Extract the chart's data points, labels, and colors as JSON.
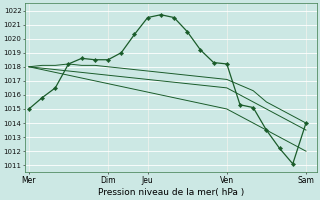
{
  "bg_color": "#cce8e4",
  "grid_color": "#ffffff",
  "line_color": "#1a5c2a",
  "xlabel": "Pression niveau de la mer( hPa )",
  "ylim": [
    1010.5,
    1022.5
  ],
  "yticks": [
    1011,
    1012,
    1013,
    1014,
    1015,
    1016,
    1017,
    1018,
    1019,
    1020,
    1021,
    1022
  ],
  "xtick_labels": [
    "Mer",
    "Dim",
    "Jeu",
    "Ven",
    "Sam"
  ],
  "xtick_positions": [
    0,
    6,
    9,
    15,
    21
  ],
  "xlim": [
    -0.3,
    21.8
  ],
  "series1_x": [
    0,
    1,
    2,
    3,
    4,
    5,
    6,
    7,
    8,
    9,
    10,
    11,
    12,
    13,
    14,
    15,
    16,
    17,
    18,
    19,
    20,
    21
  ],
  "series1_y": [
    1015.0,
    1015.8,
    1016.5,
    1018.2,
    1018.6,
    1018.5,
    1018.5,
    1019.0,
    1020.3,
    1021.5,
    1021.7,
    1021.5,
    1020.5,
    1019.2,
    1018.3,
    1018.2,
    1015.3,
    1015.1,
    1013.5,
    1012.2,
    1011.1,
    1014.0
  ],
  "series2_x": [
    0,
    1,
    2,
    3,
    4,
    5,
    6,
    7,
    8,
    9,
    10,
    11,
    12,
    13,
    14,
    15,
    16,
    17,
    18,
    19,
    20,
    21
  ],
  "series2_y": [
    1018.0,
    1018.1,
    1018.1,
    1018.2,
    1018.1,
    1018.1,
    1018.0,
    1017.9,
    1017.8,
    1017.7,
    1017.6,
    1017.5,
    1017.4,
    1017.3,
    1017.2,
    1017.1,
    1016.7,
    1016.3,
    1015.5,
    1015.0,
    1014.5,
    1014.0
  ],
  "series3_x": [
    0,
    1,
    2,
    3,
    4,
    5,
    6,
    7,
    8,
    9,
    10,
    11,
    12,
    13,
    14,
    15,
    16,
    17,
    18,
    19,
    20,
    21
  ],
  "series3_y": [
    1018.0,
    1017.9,
    1017.8,
    1017.7,
    1017.6,
    1017.5,
    1017.4,
    1017.3,
    1017.2,
    1017.1,
    1017.0,
    1016.9,
    1016.8,
    1016.7,
    1016.6,
    1016.5,
    1016.0,
    1015.5,
    1015.0,
    1014.5,
    1014.0,
    1013.5
  ],
  "series4_x": [
    0,
    1,
    2,
    3,
    4,
    5,
    6,
    7,
    8,
    9,
    10,
    11,
    12,
    13,
    14,
    15,
    16,
    17,
    18,
    19,
    20,
    21
  ],
  "series4_y": [
    1018.0,
    1017.8,
    1017.6,
    1017.4,
    1017.2,
    1017.0,
    1016.8,
    1016.6,
    1016.4,
    1016.2,
    1016.0,
    1015.8,
    1015.6,
    1015.4,
    1015.2,
    1015.0,
    1014.5,
    1014.0,
    1013.5,
    1013.0,
    1012.5,
    1012.0
  ],
  "vlines": [
    0,
    6,
    9,
    15,
    21
  ],
  "xlabel_fontsize": 6.5,
  "tick_fontsize": 5,
  "xtick_fontsize": 5.5
}
